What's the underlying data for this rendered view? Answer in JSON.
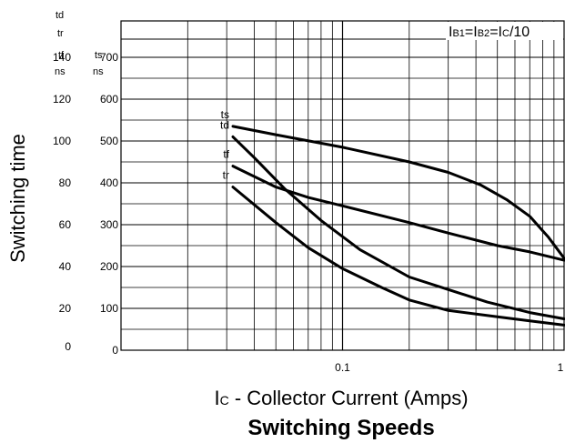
{
  "chart_data": {
    "type": "line",
    "title": "Switching Speeds",
    "xlabel_prefix": "I",
    "xlabel_sub": "C",
    "xlabel_rest": " - Collector Current (Amps)",
    "ylabel": "Switching time",
    "condition": {
      "i1": "I",
      "s1": "B1",
      "eq1": "=I",
      "s2": "B2",
      "eq2": "=I",
      "s3": "C",
      "tail": "/10"
    },
    "x_scale": "log",
    "xlim": [
      0.01,
      1
    ],
    "x_ticks": [
      {
        "value": 0.1,
        "label": "0.1"
      },
      {
        "value": 1,
        "label": "1"
      }
    ],
    "y_left_unit_header": [
      "td",
      "tr",
      "tf",
      "ns"
    ],
    "y_right_unit_header": [
      "ts",
      "ns"
    ],
    "y_left_ticks": [
      "0",
      "20",
      "40",
      "60",
      "80",
      "100",
      "120",
      "140"
    ],
    "y_right_ticks": [
      "0",
      "100",
      "200",
      "300",
      "400",
      "500",
      "600",
      "700"
    ],
    "y_left_lim": [
      0,
      140
    ],
    "y_right_lim": [
      0,
      700
    ],
    "grid": true,
    "series": [
      {
        "name": "ts",
        "axis": "right",
        "x": [
          0.032,
          0.05,
          0.1,
          0.2,
          0.3,
          0.42,
          0.55,
          0.7,
          0.85,
          1.0
        ],
        "y": [
          535,
          515,
          485,
          450,
          425,
          395,
          360,
          320,
          270,
          220
        ]
      },
      {
        "name": "td",
        "axis": "left",
        "x": [
          0.032,
          0.04,
          0.055,
          0.08,
          0.12,
          0.2,
          0.3,
          0.45,
          0.7,
          1.0
        ],
        "y": [
          102,
          92,
          77,
          62,
          48,
          35,
          29,
          23,
          18,
          15
        ]
      },
      {
        "name": "tf",
        "axis": "left",
        "x": [
          0.032,
          0.05,
          0.07,
          0.1,
          0.2,
          0.3,
          0.5,
          0.7,
          1.0
        ],
        "y": [
          88,
          78,
          73,
          69,
          61,
          56,
          50,
          47,
          43
        ]
      },
      {
        "name": "tr",
        "axis": "left",
        "x": [
          0.032,
          0.05,
          0.07,
          0.1,
          0.15,
          0.2,
          0.3,
          0.5,
          0.7,
          1.0
        ],
        "y": [
          78,
          61,
          49,
          39,
          30,
          24,
          19,
          16,
          14,
          12
        ]
      }
    ]
  }
}
